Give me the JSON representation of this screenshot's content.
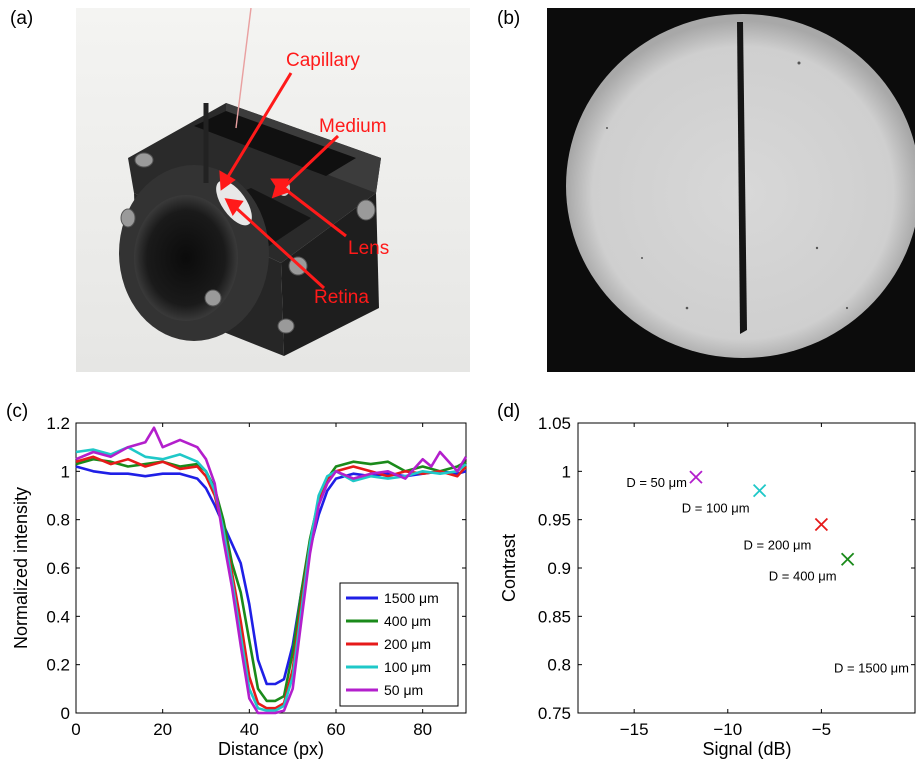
{
  "panel_labels": {
    "a": "(a)",
    "b": "(b)",
    "c": "(c)",
    "d": "(d)"
  },
  "photo_a": {
    "annotations": [
      "Capillary",
      "Medium",
      "Lens",
      "Retina"
    ],
    "annotation_color": "#ff1a1a"
  },
  "colors": {
    "1500": "#1f1fe6",
    "400": "#1a8a1a",
    "200": "#e61a1a",
    "100": "#1fc8c8",
    "50": "#b31fcc"
  },
  "chart_data": [
    {
      "type": "line",
      "xlabel": "Distance (px)",
      "ylabel": "Normalized intensity",
      "xlim": [
        0,
        90
      ],
      "ylim": [
        0,
        1.2
      ],
      "xticks": [
        0,
        20,
        40,
        60,
        80
      ],
      "yticks": [
        0,
        0.2,
        0.4,
        0.6,
        0.8,
        1,
        1.2
      ],
      "legend_position": "bottom-right",
      "series": [
        {
          "name": "1500 μm",
          "key": "1500",
          "x": [
            0,
            4,
            8,
            12,
            16,
            20,
            24,
            28,
            30,
            32,
            34,
            36,
            38,
            40,
            42,
            44,
            46,
            48,
            50,
            52,
            54,
            56,
            58,
            60,
            64,
            68,
            72,
            76,
            80,
            84,
            88,
            90
          ],
          "y": [
            1.02,
            1.0,
            0.99,
            0.99,
            0.98,
            0.99,
            0.99,
            0.97,
            0.93,
            0.86,
            0.78,
            0.7,
            0.62,
            0.45,
            0.22,
            0.12,
            0.12,
            0.14,
            0.28,
            0.5,
            0.68,
            0.82,
            0.92,
            0.97,
            0.99,
            0.98,
            0.99,
            0.98,
            0.99,
            1.0,
            0.99,
            1.0
          ]
        },
        {
          "name": "400 μm",
          "key": "400",
          "x": [
            0,
            4,
            8,
            12,
            16,
            20,
            24,
            28,
            30,
            32,
            34,
            36,
            38,
            40,
            42,
            44,
            46,
            48,
            50,
            52,
            54,
            56,
            58,
            60,
            64,
            68,
            72,
            76,
            80,
            84,
            88,
            90
          ],
          "y": [
            1.03,
            1.05,
            1.04,
            1.02,
            1.03,
            1.04,
            1.02,
            1.03,
            1.0,
            0.93,
            0.8,
            0.62,
            0.5,
            0.3,
            0.1,
            0.05,
            0.05,
            0.07,
            0.25,
            0.5,
            0.72,
            0.88,
            0.97,
            1.02,
            1.04,
            1.03,
            1.04,
            1.0,
            1.02,
            1.0,
            1.02,
            1.04
          ]
        },
        {
          "name": "200 μm",
          "key": "200",
          "x": [
            0,
            4,
            8,
            12,
            16,
            20,
            24,
            28,
            30,
            32,
            34,
            36,
            38,
            40,
            42,
            44,
            46,
            48,
            50,
            52,
            54,
            56,
            58,
            60,
            64,
            68,
            72,
            76,
            80,
            84,
            88,
            90
          ],
          "y": [
            1.04,
            1.06,
            1.03,
            1.05,
            1.02,
            1.04,
            1.01,
            1.02,
            0.98,
            0.9,
            0.76,
            0.58,
            0.38,
            0.15,
            0.04,
            0.02,
            0.02,
            0.04,
            0.18,
            0.45,
            0.7,
            0.88,
            0.97,
            1.0,
            1.02,
            1.0,
            0.98,
            1.0,
            0.99,
            1.0,
            0.98,
            1.02
          ]
        },
        {
          "name": "100 μm",
          "key": "100",
          "x": [
            0,
            4,
            8,
            12,
            16,
            20,
            24,
            28,
            30,
            32,
            34,
            36,
            38,
            40,
            42,
            44,
            46,
            48,
            50,
            52,
            54,
            56,
            58,
            60,
            64,
            68,
            72,
            76,
            80,
            84,
            88,
            90
          ],
          "y": [
            1.08,
            1.09,
            1.07,
            1.1,
            1.06,
            1.05,
            1.07,
            1.04,
            1.0,
            0.92,
            0.76,
            0.55,
            0.32,
            0.1,
            0.02,
            0.01,
            0.01,
            0.03,
            0.15,
            0.42,
            0.7,
            0.9,
            0.98,
            1.0,
            0.96,
            0.98,
            0.97,
            0.98,
            1.0,
            0.99,
            1.0,
            1.03
          ]
        },
        {
          "name": "50 μm",
          "key": "50",
          "x": [
            0,
            4,
            8,
            12,
            16,
            18,
            20,
            24,
            28,
            30,
            32,
            34,
            36,
            38,
            40,
            42,
            44,
            46,
            48,
            50,
            52,
            54,
            56,
            58,
            60,
            64,
            68,
            72,
            76,
            80,
            82,
            84,
            88,
            90
          ],
          "y": [
            1.05,
            1.08,
            1.06,
            1.1,
            1.12,
            1.18,
            1.1,
            1.13,
            1.1,
            1.05,
            0.95,
            0.72,
            0.52,
            0.28,
            0.06,
            0.0,
            0.0,
            0.0,
            0.01,
            0.1,
            0.38,
            0.66,
            0.86,
            0.95,
            1.0,
            0.97,
            0.99,
            1.0,
            0.97,
            1.05,
            1.02,
            1.08,
            1.0,
            1.06
          ]
        }
      ]
    },
    {
      "type": "scatter",
      "xlabel": "Signal (dB)",
      "ylabel": "Contrast",
      "xlim": [
        -18,
        0
      ],
      "ylim": [
        0.75,
        1.05
      ],
      "xticks": [
        -15,
        -10,
        -5
      ],
      "yticks": [
        0.75,
        0.8,
        0.85,
        0.9,
        0.95,
        1,
        1.05
      ],
      "points": [
        {
          "label": "D = 50 μm",
          "key": "50",
          "x": -11.7,
          "y": 0.994
        },
        {
          "label": "D = 100 μm",
          "key": "100",
          "x": -8.3,
          "y": 0.98
        },
        {
          "label": "D = 200 μm",
          "key": "200",
          "x": -5.0,
          "y": 0.945
        },
        {
          "label": "D = 400 μm",
          "key": "400",
          "x": -3.6,
          "y": 0.909
        },
        {
          "label": "D = 1500 μm",
          "key": "1500",
          "x": null,
          "y": null
        }
      ]
    }
  ]
}
